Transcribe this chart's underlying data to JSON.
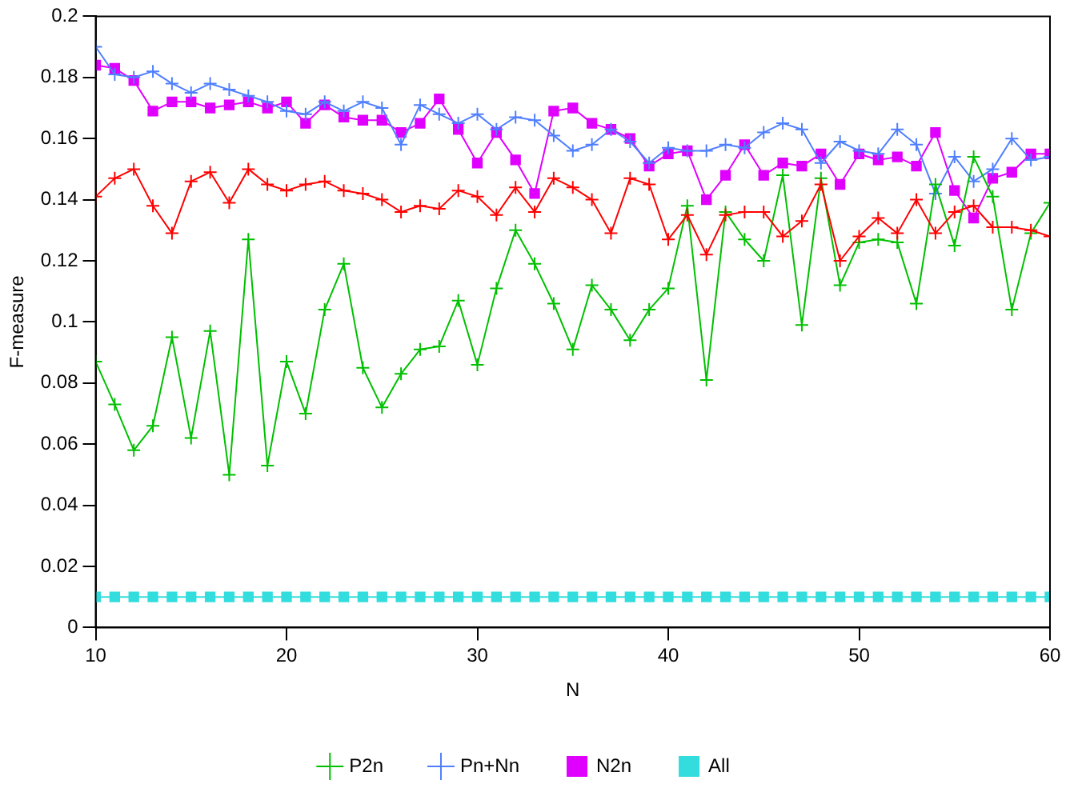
{
  "chart_data": {
    "type": "line",
    "xlabel": "N",
    "ylabel": "F-measure",
    "x": [
      10,
      11,
      12,
      13,
      14,
      15,
      16,
      17,
      18,
      19,
      20,
      21,
      22,
      23,
      24,
      25,
      26,
      27,
      28,
      29,
      30,
      31,
      32,
      33,
      34,
      35,
      36,
      37,
      38,
      39,
      40,
      41,
      42,
      43,
      44,
      45,
      46,
      47,
      48,
      49,
      50,
      51,
      52,
      53,
      54,
      55,
      56,
      57,
      58,
      59,
      60
    ],
    "xlim": [
      10,
      60
    ],
    "xticks": [
      10,
      20,
      30,
      40,
      50,
      60
    ],
    "ylim": [
      0,
      0.2
    ],
    "yticks": [
      0,
      0.02,
      0.04,
      0.06,
      0.08,
      0.1,
      0.12,
      0.14,
      0.16,
      0.18,
      0.2
    ],
    "grid": false,
    "legend": "bottom",
    "line_style": "solid",
    "series": [
      {
        "color": "#ff0000",
        "marker": "cross",
        "values": [
          0.141,
          0.147,
          0.15,
          0.138,
          0.129,
          0.146,
          0.149,
          0.139,
          0.15,
          0.145,
          0.143,
          0.145,
          0.146,
          0.143,
          0.142,
          0.14,
          0.136,
          0.138,
          0.137,
          0.143,
          0.141,
          0.135,
          0.144,
          0.136,
          0.147,
          0.144,
          0.14,
          0.129,
          0.147,
          0.145,
          0.127,
          0.135,
          0.122,
          0.135,
          0.136,
          0.136,
          0.128,
          0.133,
          0.145,
          0.12,
          0.128,
          0.134,
          0.129,
          0.14,
          0.129,
          0.136,
          0.138,
          0.131,
          0.131,
          0.13,
          0.128
        ]
      },
      {
        "name": "P2n",
        "color": "#00c000",
        "marker": "cross",
        "values": [
          0.087,
          0.073,
          0.058,
          0.066,
          0.095,
          0.062,
          0.097,
          0.05,
          0.127,
          0.053,
          0.087,
          0.07,
          0.104,
          0.119,
          0.085,
          0.072,
          0.083,
          0.091,
          0.092,
          0.107,
          0.086,
          0.111,
          0.13,
          0.119,
          0.106,
          0.091,
          0.112,
          0.104,
          0.094,
          0.104,
          0.111,
          0.138,
          0.081,
          0.136,
          0.127,
          0.12,
          0.148,
          0.099,
          0.147,
          0.112,
          0.126,
          0.127,
          0.126,
          0.106,
          0.145,
          0.125,
          0.154,
          0.141,
          0.104,
          0.129,
          0.139
        ]
      },
      {
        "name": "Pn+Nn",
        "color": "#4f7fff",
        "marker": "cross",
        "values": [
          0.19,
          0.181,
          0.18,
          0.182,
          0.178,
          0.175,
          0.178,
          0.176,
          0.174,
          0.172,
          0.169,
          0.168,
          0.172,
          0.169,
          0.172,
          0.17,
          0.158,
          0.171,
          0.168,
          0.165,
          0.168,
          0.163,
          0.167,
          0.166,
          0.161,
          0.156,
          0.158,
          0.163,
          0.159,
          0.152,
          0.157,
          0.156,
          0.156,
          0.158,
          0.157,
          0.162,
          0.165,
          0.163,
          0.152,
          0.159,
          0.156,
          0.155,
          0.163,
          0.158,
          0.142,
          0.154,
          0.146,
          0.15,
          0.16,
          0.153,
          0.154
        ]
      },
      {
        "name": "N2n",
        "color": "#e000ff",
        "marker": "square",
        "values": [
          0.184,
          0.183,
          0.179,
          0.169,
          0.172,
          0.172,
          0.17,
          0.171,
          0.172,
          0.17,
          0.172,
          0.165,
          0.171,
          0.167,
          0.166,
          0.166,
          0.162,
          0.165,
          0.173,
          0.163,
          0.152,
          0.162,
          0.153,
          0.142,
          0.169,
          0.17,
          0.165,
          0.163,
          0.16,
          0.151,
          0.155,
          0.156,
          0.14,
          0.148,
          0.158,
          0.148,
          0.152,
          0.151,
          0.155,
          0.145,
          0.155,
          0.153,
          0.154,
          0.151,
          0.162,
          0.143,
          0.134,
          0.147,
          0.149,
          0.155,
          0.155
        ]
      },
      {
        "name": "All",
        "color": "#33dddd",
        "marker": "square",
        "values": [
          0.01,
          0.01,
          0.01,
          0.01,
          0.01,
          0.01,
          0.01,
          0.01,
          0.01,
          0.01,
          0.01,
          0.01,
          0.01,
          0.01,
          0.01,
          0.01,
          0.01,
          0.01,
          0.01,
          0.01,
          0.01,
          0.01,
          0.01,
          0.01,
          0.01,
          0.01,
          0.01,
          0.01,
          0.01,
          0.01,
          0.01,
          0.01,
          0.01,
          0.01,
          0.01,
          0.01,
          0.01,
          0.01,
          0.01,
          0.01,
          0.01,
          0.01,
          0.01,
          0.01,
          0.01,
          0.01,
          0.01,
          0.01,
          0.01,
          0.01,
          0.01
        ]
      }
    ]
  }
}
